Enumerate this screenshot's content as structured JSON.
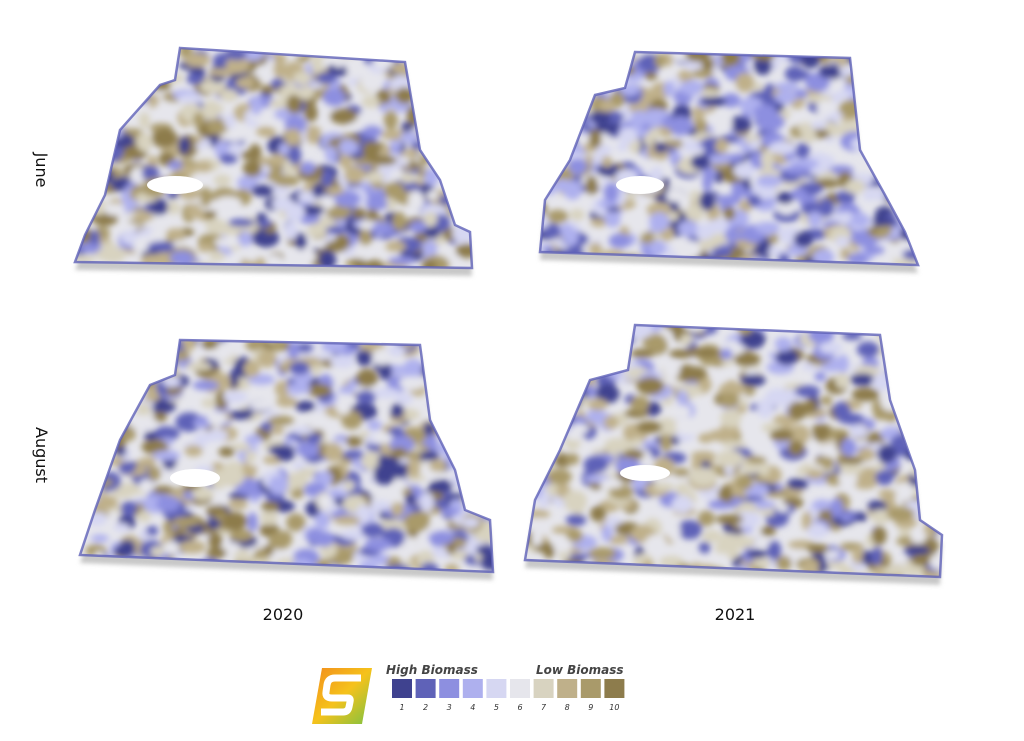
{
  "row_labels": [
    "June",
    "August"
  ],
  "column_labels": [
    "2020",
    "2021"
  ],
  "legend": {
    "high_label": "High Biomass",
    "low_label": "Low Biomass",
    "classes": [
      {
        "label": "1",
        "color": "#3f428f"
      },
      {
        "label": "2",
        "color": "#5f62b8"
      },
      {
        "label": "3",
        "color": "#8d8fe0"
      },
      {
        "label": "4",
        "color": "#aeb0ee"
      },
      {
        "label": "5",
        "color": "#d6d7f2"
      },
      {
        "label": "6",
        "color": "#e6e6ec"
      },
      {
        "label": "7",
        "color": "#d8d3c0"
      },
      {
        "label": "8",
        "color": "#bfb08a"
      },
      {
        "label": "9",
        "color": "#a99a6a"
      },
      {
        "label": "10",
        "color": "#8d7c4c"
      }
    ]
  }
}
